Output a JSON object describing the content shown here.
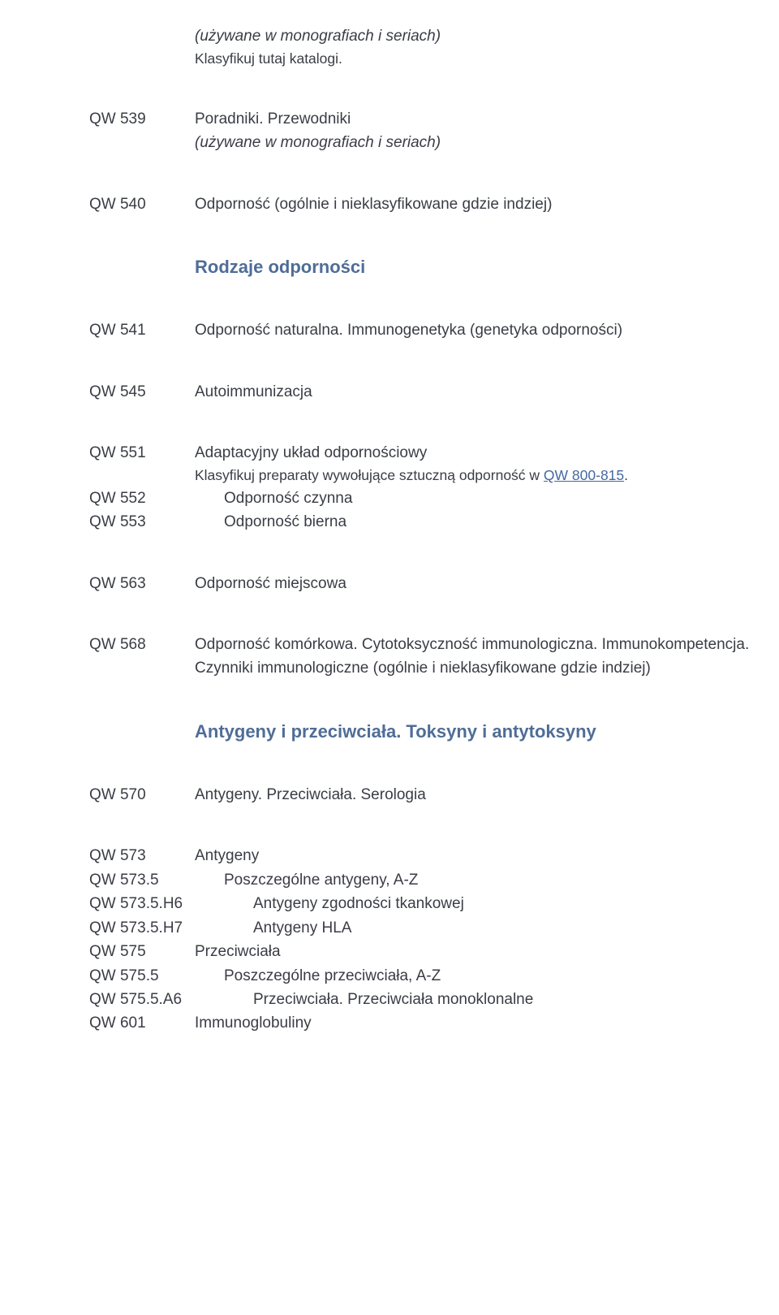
{
  "colors": {
    "text": "#3a3d45",
    "heading": "#4f6d97",
    "link": "#4568a1",
    "background": "#ffffff"
  },
  "typography": {
    "body_fontsize": 19,
    "heading_fontsize": 22,
    "note_fontsize": 17.5,
    "font_family": "Arial"
  },
  "top_note": {
    "line1": "(używane w monografiach i seriach)",
    "line2": "Klasyfikuj tutaj katalogi."
  },
  "entries": {
    "qw539": {
      "code": "QW 539",
      "line1": "Poradniki. Przewodniki",
      "line2": "(używane w monografiach i seriach)"
    },
    "qw540": {
      "code": "QW 540",
      "desc": "Odporność (ogólnie i nieklasyfikowane gdzie indziej)"
    },
    "heading1": "Rodzaje odporności",
    "qw541": {
      "code": "QW 541",
      "desc": "Odporność naturalna. Immunogenetyka (genetyka odporności)"
    },
    "qw545": {
      "code": "QW 545",
      "desc": "Autoimmunizacja"
    },
    "qw551": {
      "code": "QW 551",
      "desc": "Adaptacyjny układ odpornościowy",
      "note_prefix": "Klasyfikuj preparaty wywołujące sztuczną odporność w ",
      "note_link": "QW 800-815",
      "note_suffix": "."
    },
    "qw552": {
      "code": "QW 552",
      "desc": "Odporność czynna"
    },
    "qw553": {
      "code": "QW 553",
      "desc": "Odporność bierna"
    },
    "qw563": {
      "code": "QW 563",
      "desc": "Odporność miejscowa"
    },
    "qw568": {
      "code": "QW 568",
      "desc": "Odporność komórkowa. Cytotoksyczność immunologiczna. Immunokompetencja. Czynniki immunologiczne (ogólnie i nieklasyfikowane gdzie indziej)"
    },
    "heading2": "Antygeny i przeciwciała. Toksyny i antytoksyny",
    "qw570": {
      "code": "QW 570",
      "desc": "Antygeny. Przeciwciała. Serologia"
    },
    "qw573": {
      "code": "QW 573",
      "desc": "Antygeny"
    },
    "qw573_5": {
      "code": "QW 573.5",
      "desc": "Poszczególne antygeny, A-Z"
    },
    "qw573_5h6": {
      "code": "QW 573.5.H6",
      "desc": "Antygeny zgodności tkankowej"
    },
    "qw573_5h7": {
      "code": "QW 573.5.H7",
      "desc": "Antygeny HLA"
    },
    "qw575": {
      "code": "QW 575",
      "desc": "Przeciwciała"
    },
    "qw575_5": {
      "code": "QW 575.5",
      "desc": "Poszczególne przeciwciała, A-Z"
    },
    "qw575_5a6": {
      "code": "QW 575.5.A6",
      "desc": "Przeciwciała. Przeciwciała monoklonalne"
    },
    "qw601": {
      "code": "QW 601",
      "desc": "Immunoglobuliny"
    }
  }
}
